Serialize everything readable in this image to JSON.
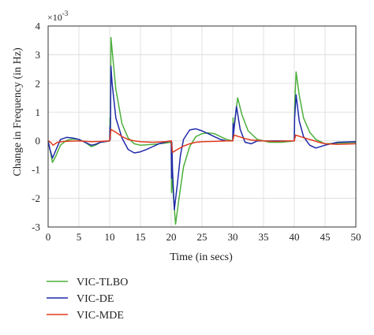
{
  "colors": {
    "VIC-TLBO": "#4caf3c",
    "VIC-DE": "#1f2aa8",
    "VIC-MDE": "#e03a1e",
    "grid": "#d9d9d9",
    "axis": "#333333"
  },
  "chart_data": {
    "type": "line",
    "title": "",
    "xlabel": "Time (in secs)",
    "ylabel": "Change in Frequency (in Hz)",
    "y_multiplier": "×10",
    "y_multiplier_exp": "-3",
    "xlim": [
      0,
      50
    ],
    "ylim": [
      -3,
      4
    ],
    "xticks": [
      0,
      5,
      10,
      15,
      20,
      25,
      30,
      35,
      40,
      45,
      50
    ],
    "yticks": [
      -3,
      -2,
      -1,
      0,
      1,
      2,
      3,
      4
    ],
    "grid": true,
    "legend_position": "below",
    "series": [
      {
        "name": "VIC-TLBO",
        "color": "#4caf3c",
        "points": [
          [
            0,
            0
          ],
          [
            0.3,
            -0.3
          ],
          [
            0.7,
            -0.75
          ],
          [
            1.2,
            -0.55
          ],
          [
            2,
            -0.15
          ],
          [
            3,
            0.02
          ],
          [
            4,
            0.06
          ],
          [
            5,
            0.05
          ],
          [
            6,
            -0.05
          ],
          [
            7,
            -0.2
          ],
          [
            7.7,
            -0.15
          ],
          [
            8.5,
            -0.05
          ],
          [
            10,
            0
          ],
          [
            10.05,
            0.8
          ],
          [
            10.1,
            0.1
          ],
          [
            10.2,
            3.6
          ],
          [
            10.3,
            3.4
          ],
          [
            11,
            1.8
          ],
          [
            12,
            0.6
          ],
          [
            13,
            0.1
          ],
          [
            14,
            -0.1
          ],
          [
            15,
            -0.15
          ],
          [
            17,
            -0.12
          ],
          [
            19,
            -0.08
          ],
          [
            20,
            -0.05
          ],
          [
            20.05,
            -1.8
          ],
          [
            20.1,
            -0.1
          ],
          [
            20.2,
            -1.5
          ],
          [
            20.7,
            -2.9
          ],
          [
            21.2,
            -2.1
          ],
          [
            22,
            -0.9
          ],
          [
            23,
            -0.2
          ],
          [
            24,
            0.15
          ],
          [
            25,
            0.25
          ],
          [
            26,
            0.28
          ],
          [
            27,
            0.25
          ],
          [
            28,
            0.15
          ],
          [
            29,
            0.05
          ],
          [
            30,
            0
          ],
          [
            30.05,
            0.8
          ],
          [
            30.1,
            0.3
          ],
          [
            30.8,
            1.5
          ],
          [
            31.5,
            0.9
          ],
          [
            32.5,
            0.35
          ],
          [
            34,
            0.05
          ],
          [
            36,
            -0.05
          ],
          [
            38,
            -0.05
          ],
          [
            40,
            0
          ],
          [
            40.05,
            1.2
          ],
          [
            40.3,
            2.4
          ],
          [
            40.8,
            1.6
          ],
          [
            41.5,
            0.8
          ],
          [
            42.5,
            0.3
          ],
          [
            43.5,
            0.05
          ],
          [
            45,
            -0.1
          ],
          [
            47,
            -0.08
          ],
          [
            50,
            -0.05
          ]
        ]
      },
      {
        "name": "VIC-DE",
        "color": "#1f2aa8",
        "points": [
          [
            0,
            0
          ],
          [
            0.3,
            -0.3
          ],
          [
            0.7,
            -0.6
          ],
          [
            1.2,
            -0.35
          ],
          [
            2,
            0.05
          ],
          [
            3,
            0.12
          ],
          [
            4,
            0.1
          ],
          [
            5,
            0.05
          ],
          [
            6,
            -0.05
          ],
          [
            7,
            -0.15
          ],
          [
            7.7,
            -0.12
          ],
          [
            8.5,
            -0.05
          ],
          [
            10,
            0
          ],
          [
            10.05,
            0.5
          ],
          [
            10.1,
            0.05
          ],
          [
            10.2,
            2.6
          ],
          [
            10.4,
            2.0
          ],
          [
            11,
            0.8
          ],
          [
            12,
            0.1
          ],
          [
            13,
            -0.3
          ],
          [
            14,
            -0.42
          ],
          [
            15,
            -0.38
          ],
          [
            16,
            -0.3
          ],
          [
            17,
            -0.2
          ],
          [
            18,
            -0.1
          ],
          [
            19,
            -0.05
          ],
          [
            20,
            0
          ],
          [
            20.05,
            -1.3
          ],
          [
            20.1,
            -0.05
          ],
          [
            20.2,
            -1.0
          ],
          [
            20.5,
            -2.4
          ],
          [
            21,
            -1.5
          ],
          [
            21.5,
            -0.5
          ],
          [
            22,
            0.05
          ],
          [
            23,
            0.38
          ],
          [
            24,
            0.42
          ],
          [
            25,
            0.35
          ],
          [
            26,
            0.25
          ],
          [
            27,
            0.15
          ],
          [
            28,
            0.05
          ],
          [
            29,
            0
          ],
          [
            30,
            0
          ],
          [
            30.05,
            0.6
          ],
          [
            30.1,
            0.2
          ],
          [
            30.6,
            1.2
          ],
          [
            31.2,
            0.4
          ],
          [
            32,
            -0.05
          ],
          [
            33,
            -0.1
          ],
          [
            34,
            0
          ],
          [
            36,
            0
          ],
          [
            38,
            0
          ],
          [
            40,
            0
          ],
          [
            40.05,
            0.8
          ],
          [
            40.3,
            1.6
          ],
          [
            40.8,
            0.7
          ],
          [
            41.5,
            0.15
          ],
          [
            42.5,
            -0.15
          ],
          [
            43.5,
            -0.25
          ],
          [
            45,
            -0.15
          ],
          [
            47,
            -0.05
          ],
          [
            50,
            -0.03
          ]
        ]
      },
      {
        "name": "VIC-MDE",
        "color": "#e03a1e",
        "points": [
          [
            0,
            0
          ],
          [
            0.4,
            -0.05
          ],
          [
            0.8,
            -0.15
          ],
          [
            1.5,
            -0.05
          ],
          [
            2.5,
            -0.02
          ],
          [
            5,
            0
          ],
          [
            7,
            -0.03
          ],
          [
            8.5,
            -0.02
          ],
          [
            10,
            0
          ],
          [
            10.2,
            0.4
          ],
          [
            11,
            0.3
          ],
          [
            12,
            0.15
          ],
          [
            13,
            0.05
          ],
          [
            14,
            0
          ],
          [
            15,
            -0.03
          ],
          [
            17,
            -0.05
          ],
          [
            19,
            -0.03
          ],
          [
            20,
            0
          ],
          [
            20.2,
            -0.4
          ],
          [
            21,
            -0.3
          ],
          [
            22,
            -0.18
          ],
          [
            23,
            -0.1
          ],
          [
            24,
            -0.05
          ],
          [
            25,
            -0.03
          ],
          [
            27,
            -0.02
          ],
          [
            29,
            0
          ],
          [
            30,
            0
          ],
          [
            30.2,
            0.2
          ],
          [
            31,
            0.15
          ],
          [
            32,
            0.08
          ],
          [
            33,
            0.03
          ],
          [
            35,
            0
          ],
          [
            37,
            -0.02
          ],
          [
            39,
            0
          ],
          [
            40,
            0
          ],
          [
            40.2,
            0.2
          ],
          [
            41,
            0.15
          ],
          [
            42,
            0.08
          ],
          [
            43,
            0.02
          ],
          [
            44,
            -0.05
          ],
          [
            45,
            -0.1
          ],
          [
            47,
            -0.12
          ],
          [
            50,
            -0.1
          ]
        ]
      }
    ]
  }
}
